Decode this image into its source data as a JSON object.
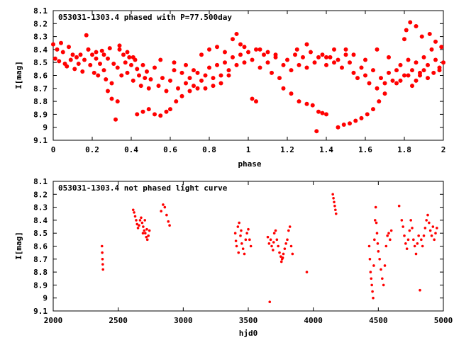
{
  "chart_data": [
    {
      "type": "scatter",
      "title": "053031-1303.4 phased with P=77.500day",
      "xlabel": "phase",
      "ylabel": "I[mag]",
      "xlim": [
        0,
        2
      ],
      "ylim": [
        9.1,
        8.1
      ],
      "y_inverted": true,
      "x_ticks": [
        "0",
        "0.2",
        "0.4",
        "0.6",
        "0.8",
        "1",
        "1.2",
        "1.4",
        "1.6",
        "1.8",
        "2"
      ],
      "y_ticks": [
        "8.1",
        "8.2",
        "8.3",
        "8.4",
        "8.5",
        "8.6",
        "8.7",
        "8.8",
        "8.9",
        "9",
        "9.1"
      ],
      "grid": false,
      "marker_color": "#ff0000",
      "points": [
        [
          0.0,
          8.36
        ],
        [
          0.01,
          8.47
        ],
        [
          0.02,
          8.4
        ],
        [
          0.03,
          8.49
        ],
        [
          0.04,
          8.35
        ],
        [
          0.05,
          8.42
        ],
        [
          0.06,
          8.51
        ],
        [
          0.07,
          8.53
        ],
        [
          0.08,
          8.38
        ],
        [
          0.09,
          8.48
        ],
        [
          0.1,
          8.44
        ],
        [
          0.11,
          8.55
        ],
        [
          0.12,
          8.46
        ],
        [
          0.13,
          8.51
        ],
        [
          0.14,
          8.44
        ],
        [
          0.15,
          8.57
        ],
        [
          0.16,
          8.48
        ],
        [
          0.17,
          8.29
        ],
        [
          0.18,
          8.4
        ],
        [
          0.19,
          8.52
        ],
        [
          0.2,
          8.44
        ],
        [
          0.21,
          8.58
        ],
        [
          0.22,
          8.47
        ],
        [
          0.23,
          8.6
        ],
        [
          0.24,
          8.51
        ],
        [
          0.25,
          8.41
        ],
        [
          0.26,
          8.56
        ],
        [
          0.27,
          8.63
        ],
        [
          0.28,
          8.47
        ],
        [
          0.29,
          8.39
        ],
        [
          0.3,
          8.66
        ],
        [
          0.31,
          8.51
        ],
        [
          0.32,
          8.94
        ],
        [
          0.33,
          8.54
        ],
        [
          0.34,
          8.37
        ],
        [
          0.35,
          8.6
        ],
        [
          0.36,
          8.44
        ],
        [
          0.37,
          8.5
        ],
        [
          0.38,
          8.58
        ],
        [
          0.39,
          8.46
        ],
        [
          0.4,
          8.52
        ],
        [
          0.41,
          8.64
        ],
        [
          0.42,
          8.48
        ],
        [
          0.43,
          8.55
        ],
        [
          0.44,
          8.6
        ],
        [
          0.45,
          8.68
        ],
        [
          0.46,
          8.52
        ],
        [
          0.47,
          8.62
        ],
        [
          0.48,
          8.57
        ],
        [
          0.49,
          8.7
        ],
        [
          0.5,
          8.63
        ],
        [
          0.52,
          8.54
        ],
        [
          0.54,
          8.68
        ],
        [
          0.56,
          8.62
        ],
        [
          0.58,
          8.72
        ],
        [
          0.6,
          8.64
        ],
        [
          0.62,
          8.56
        ],
        [
          0.64,
          8.7
        ],
        [
          0.66,
          8.58
        ],
        [
          0.68,
          8.66
        ],
        [
          0.7,
          8.62
        ],
        [
          0.72,
          8.68
        ],
        [
          0.74,
          8.58
        ],
        [
          0.76,
          8.64
        ],
        [
          0.78,
          8.6
        ],
        [
          0.8,
          8.54
        ],
        [
          0.82,
          8.62
        ],
        [
          0.84,
          8.52
        ],
        [
          0.86,
          8.6
        ],
        [
          0.88,
          8.5
        ],
        [
          0.9,
          8.56
        ],
        [
          0.92,
          8.46
        ],
        [
          0.94,
          8.52
        ],
        [
          0.96,
          8.44
        ],
        [
          0.98,
          8.5
        ],
        [
          1.0,
          8.42
        ],
        [
          1.02,
          8.48
        ],
        [
          1.04,
          8.4
        ],
        [
          1.06,
          8.54
        ],
        [
          1.08,
          8.44
        ],
        [
          1.1,
          8.5
        ],
        [
          1.12,
          8.58
        ],
        [
          1.14,
          8.46
        ],
        [
          1.16,
          8.62
        ],
        [
          1.18,
          8.52
        ],
        [
          1.2,
          8.48
        ],
        [
          1.22,
          8.56
        ],
        [
          1.24,
          8.44
        ],
        [
          1.26,
          8.52
        ],
        [
          1.28,
          8.46
        ],
        [
          1.3,
          8.54
        ],
        [
          1.32,
          8.42
        ],
        [
          1.34,
          8.5
        ],
        [
          1.36,
          8.46
        ],
        [
          1.38,
          8.44
        ],
        [
          1.4,
          8.52
        ],
        [
          1.42,
          8.46
        ],
        [
          1.44,
          8.4
        ],
        [
          1.46,
          8.48
        ],
        [
          1.48,
          8.54
        ],
        [
          1.5,
          8.44
        ],
        [
          1.52,
          8.5
        ],
        [
          1.54,
          8.58
        ],
        [
          1.56,
          8.62
        ],
        [
          1.58,
          8.54
        ],
        [
          1.6,
          8.6
        ],
        [
          1.62,
          8.66
        ],
        [
          1.64,
          8.56
        ],
        [
          1.66,
          8.7
        ],
        [
          1.68,
          8.62
        ],
        [
          1.7,
          8.66
        ],
        [
          1.72,
          8.58
        ],
        [
          1.74,
          8.64
        ],
        [
          1.76,
          8.56
        ],
        [
          1.78,
          8.52
        ],
        [
          1.8,
          8.6
        ],
        [
          1.82,
          8.48
        ],
        [
          1.84,
          8.56
        ],
        [
          1.86,
          8.5
        ],
        [
          1.88,
          8.58
        ],
        [
          1.9,
          8.46
        ],
        [
          1.92,
          8.52
        ],
        [
          1.94,
          8.4
        ],
        [
          1.96,
          8.48
        ],
        [
          1.98,
          8.56
        ],
        [
          2.0,
          8.5
        ],
        [
          0.28,
          8.72
        ],
        [
          0.3,
          8.78
        ],
        [
          0.33,
          8.8
        ],
        [
          0.43,
          8.9
        ],
        [
          0.46,
          8.88
        ],
        [
          0.49,
          8.86
        ],
        [
          0.52,
          8.9
        ],
        [
          0.55,
          8.91
        ],
        [
          0.58,
          8.88
        ],
        [
          0.6,
          8.86
        ],
        [
          0.63,
          8.8
        ],
        [
          0.66,
          8.76
        ],
        [
          0.7,
          8.72
        ],
        [
          0.74,
          8.7
        ],
        [
          0.78,
          8.7
        ],
        [
          0.82,
          8.68
        ],
        [
          0.86,
          8.66
        ],
        [
          0.9,
          8.6
        ],
        [
          1.02,
          8.78
        ],
        [
          1.04,
          8.8
        ],
        [
          1.18,
          8.7
        ],
        [
          1.22,
          8.74
        ],
        [
          1.26,
          8.8
        ],
        [
          1.3,
          8.82
        ],
        [
          1.33,
          8.83
        ],
        [
          1.36,
          8.88
        ],
        [
          1.38,
          8.89
        ],
        [
          1.4,
          8.9
        ],
        [
          1.35,
          9.03
        ],
        [
          1.46,
          9.0
        ],
        [
          1.49,
          8.98
        ],
        [
          1.52,
          8.97
        ],
        [
          1.55,
          8.95
        ],
        [
          1.58,
          8.93
        ],
        [
          1.61,
          8.9
        ],
        [
          1.64,
          8.86
        ],
        [
          1.67,
          8.8
        ],
        [
          1.7,
          8.74
        ],
        [
          1.8,
          8.32
        ],
        [
          1.81,
          8.25
        ],
        [
          1.83,
          8.19
        ],
        [
          1.86,
          8.22
        ],
        [
          1.89,
          8.3
        ],
        [
          1.93,
          8.28
        ],
        [
          1.96,
          8.34
        ],
        [
          1.99,
          8.38
        ],
        [
          0.18,
          8.4
        ],
        [
          0.22,
          8.42
        ],
        [
          0.26,
          8.44
        ],
        [
          0.34,
          8.4
        ],
        [
          0.38,
          8.42
        ],
        [
          0.41,
          8.46
        ],
        [
          0.55,
          8.48
        ],
        [
          0.62,
          8.5
        ],
        [
          0.68,
          8.52
        ],
        [
          0.72,
          8.56
        ],
        [
          0.76,
          8.44
        ],
        [
          0.8,
          8.4
        ],
        [
          0.84,
          8.38
        ],
        [
          0.88,
          8.42
        ],
        [
          0.92,
          8.32
        ],
        [
          0.94,
          8.28
        ],
        [
          0.96,
          8.36
        ],
        [
          0.98,
          8.38
        ],
        [
          1.06,
          8.4
        ],
        [
          1.1,
          8.42
        ],
        [
          1.14,
          8.44
        ],
        [
          1.25,
          8.4
        ],
        [
          1.3,
          8.36
        ],
        [
          1.4,
          8.46
        ],
        [
          1.44,
          8.5
        ],
        [
          1.5,
          8.4
        ],
        [
          1.54,
          8.44
        ],
        [
          1.6,
          8.48
        ],
        [
          1.66,
          8.4
        ],
        [
          1.72,
          8.46
        ],
        [
          1.76,
          8.66
        ],
        [
          1.78,
          8.64
        ],
        [
          1.82,
          8.6
        ],
        [
          1.84,
          8.68
        ],
        [
          1.86,
          8.64
        ],
        [
          1.88,
          8.6
        ],
        [
          1.9,
          8.56
        ],
        [
          1.92,
          8.62
        ],
        [
          1.95,
          8.58
        ],
        [
          1.98,
          8.54
        ]
      ]
    },
    {
      "type": "scatter",
      "title": "053031-1303.4 not phased light curve",
      "xlabel": "hjd0",
      "ylabel": "I[mag]",
      "xlim": [
        2000,
        5000
      ],
      "ylim": [
        9.1,
        8.1
      ],
      "y_inverted": true,
      "x_ticks": [
        "2000",
        "2500",
        "3000",
        "3500",
        "4000",
        "4500",
        "5000"
      ],
      "y_ticks": [
        "8.1",
        "8.2",
        "8.3",
        "8.4",
        "8.5",
        "8.6",
        "8.7",
        "8.8",
        "8.9",
        "9",
        "9.1"
      ],
      "grid": false,
      "marker_color": "#ff0000",
      "points": [
        [
          2375,
          8.6
        ],
        [
          2377,
          8.65
        ],
        [
          2379,
          8.7
        ],
        [
          2381,
          8.74
        ],
        [
          2383,
          8.78
        ],
        [
          2615,
          8.32
        ],
        [
          2622,
          8.34
        ],
        [
          2630,
          8.37
        ],
        [
          2638,
          8.4
        ],
        [
          2645,
          8.43
        ],
        [
          2652,
          8.46
        ],
        [
          2660,
          8.44
        ],
        [
          2668,
          8.4
        ],
        [
          2676,
          8.38
        ],
        [
          2684,
          8.42
        ],
        [
          2692,
          8.45
        ],
        [
          2700,
          8.48
        ],
        [
          2708,
          8.5
        ],
        [
          2716,
          8.53
        ],
        [
          2724,
          8.55
        ],
        [
          2732,
          8.52
        ],
        [
          2740,
          8.48
        ],
        [
          2690,
          8.5
        ],
        [
          2705,
          8.4
        ],
        [
          2720,
          8.47
        ],
        [
          2830,
          8.33
        ],
        [
          2845,
          8.28
        ],
        [
          2858,
          8.3
        ],
        [
          2872,
          8.36
        ],
        [
          2885,
          8.41
        ],
        [
          2895,
          8.44
        ],
        [
          3400,
          8.5
        ],
        [
          3405,
          8.56
        ],
        [
          3410,
          8.6
        ],
        [
          3420,
          8.45
        ],
        [
          3430,
          8.42
        ],
        [
          3440,
          8.52
        ],
        [
          3450,
          8.58
        ],
        [
          3460,
          8.62
        ],
        [
          3470,
          8.66
        ],
        [
          3480,
          8.55
        ],
        [
          3490,
          8.5
        ],
        [
          3500,
          8.47
        ],
        [
          3510,
          8.55
        ],
        [
          3520,
          8.6
        ],
        [
          3425,
          8.65
        ],
        [
          3445,
          8.48
        ],
        [
          3650,
          8.53
        ],
        [
          3660,
          8.58
        ],
        [
          3665,
          9.03
        ],
        [
          3672,
          8.55
        ],
        [
          3680,
          8.6
        ],
        [
          3690,
          8.63
        ],
        [
          3700,
          8.5
        ],
        [
          3710,
          8.48
        ],
        [
          3720,
          8.55
        ],
        [
          3730,
          8.6
        ],
        [
          3740,
          8.65
        ],
        [
          3750,
          8.68
        ],
        [
          3760,
          8.7
        ],
        [
          3770,
          8.66
        ],
        [
          3780,
          8.62
        ],
        [
          3790,
          8.58
        ],
        [
          3800,
          8.55
        ],
        [
          3810,
          8.48
        ],
        [
          3820,
          8.45
        ],
        [
          3830,
          8.6
        ],
        [
          3840,
          8.66
        ],
        [
          3755,
          8.72
        ],
        [
          3765,
          8.69
        ],
        [
          3695,
          8.57
        ],
        [
          3950,
          8.8
        ],
        [
          4150,
          8.2
        ],
        [
          4155,
          8.23
        ],
        [
          4160,
          8.26
        ],
        [
          4165,
          8.29
        ],
        [
          4170,
          8.32
        ],
        [
          4175,
          8.35
        ],
        [
          4430,
          8.6
        ],
        [
          4435,
          8.7
        ],
        [
          4440,
          8.8
        ],
        [
          4445,
          8.85
        ],
        [
          4450,
          8.9
        ],
        [
          4455,
          8.95
        ],
        [
          4460,
          9.0
        ],
        [
          4465,
          8.75
        ],
        [
          4470,
          8.55
        ],
        [
          4475,
          8.4
        ],
        [
          4480,
          8.3
        ],
        [
          4485,
          8.42
        ],
        [
          4490,
          8.5
        ],
        [
          4495,
          8.58
        ],
        [
          4500,
          8.64
        ],
        [
          4510,
          8.7
        ],
        [
          4520,
          8.78
        ],
        [
          4530,
          8.85
        ],
        [
          4540,
          8.9
        ],
        [
          4550,
          8.75
        ],
        [
          4560,
          8.6
        ],
        [
          4570,
          8.52
        ],
        [
          4580,
          8.5
        ],
        [
          4590,
          8.55
        ],
        [
          4600,
          8.48
        ],
        [
          4660,
          8.29
        ],
        [
          4680,
          8.4
        ],
        [
          4690,
          8.45
        ],
        [
          4700,
          8.52
        ],
        [
          4710,
          8.58
        ],
        [
          4720,
          8.62
        ],
        [
          4730,
          8.55
        ],
        [
          4740,
          8.48
        ],
        [
          4750,
          8.4
        ],
        [
          4760,
          8.46
        ],
        [
          4770,
          8.55
        ],
        [
          4780,
          8.6
        ],
        [
          4790,
          8.66
        ],
        [
          4800,
          8.58
        ],
        [
          4810,
          8.52
        ],
        [
          4820,
          8.94
        ],
        [
          4830,
          8.55
        ],
        [
          4840,
          8.6
        ],
        [
          4850,
          8.52
        ],
        [
          4860,
          8.46
        ],
        [
          4870,
          8.4
        ],
        [
          4880,
          8.36
        ],
        [
          4890,
          8.42
        ],
        [
          4900,
          8.48
        ],
        [
          4910,
          8.52
        ],
        [
          4920,
          8.45
        ],
        [
          4930,
          8.55
        ],
        [
          4940,
          8.5
        ],
        [
          4950,
          8.46
        ]
      ]
    }
  ]
}
